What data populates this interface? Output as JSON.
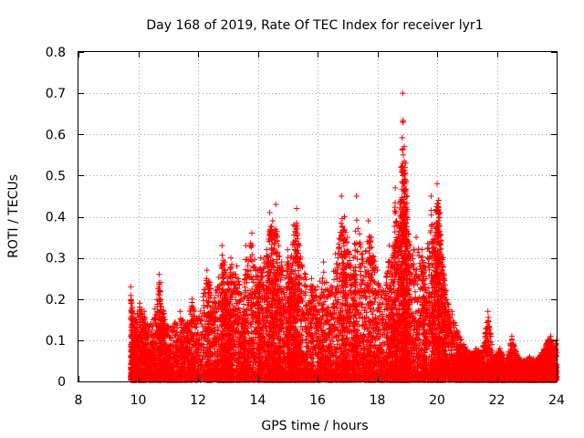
{
  "chart_data": {
    "type": "scatter",
    "title": "Day 168 of 2019, Rate Of TEC Index for receiver lyr1",
    "xlabel": "GPS time / hours",
    "ylabel": "ROTI / TECUs",
    "xlim": [
      8,
      24
    ],
    "ylim": [
      0,
      0.8
    ],
    "xticks": [
      "8",
      "10",
      "12",
      "14",
      "16",
      "18",
      "20",
      "22",
      "24"
    ],
    "yticks": [
      "0",
      "0.1",
      "0.2",
      "0.3",
      "0.4",
      "0.5",
      "0.6",
      "0.7",
      "0.8"
    ],
    "grid": true,
    "marker": "+",
    "color": "#ff0000",
    "series": [
      {
        "name": "ROTI",
        "points": [
          [
            9.75,
            0.23
          ],
          [
            9.8,
            0.18
          ],
          [
            9.9,
            0.15
          ],
          [
            10.05,
            0.19
          ],
          [
            10.2,
            0.17
          ],
          [
            10.3,
            0.14
          ],
          [
            10.5,
            0.15
          ],
          [
            10.7,
            0.26
          ],
          [
            10.75,
            0.24
          ],
          [
            10.9,
            0.15
          ],
          [
            11.1,
            0.13
          ],
          [
            11.4,
            0.17
          ],
          [
            11.6,
            0.14
          ],
          [
            11.8,
            0.2
          ],
          [
            12.0,
            0.15
          ],
          [
            12.3,
            0.27
          ],
          [
            12.4,
            0.24
          ],
          [
            12.6,
            0.22
          ],
          [
            12.8,
            0.33
          ],
          [
            12.9,
            0.29
          ],
          [
            13.0,
            0.25
          ],
          [
            13.1,
            0.3
          ],
          [
            13.3,
            0.28
          ],
          [
            13.5,
            0.2
          ],
          [
            13.6,
            0.33
          ],
          [
            13.8,
            0.36
          ],
          [
            14.0,
            0.27
          ],
          [
            14.1,
            0.3
          ],
          [
            14.3,
            0.32
          ],
          [
            14.4,
            0.41
          ],
          [
            14.5,
            0.39
          ],
          [
            14.6,
            0.43
          ],
          [
            14.7,
            0.33
          ],
          [
            14.8,
            0.29
          ],
          [
            15.0,
            0.32
          ],
          [
            15.1,
            0.3
          ],
          [
            15.2,
            0.38
          ],
          [
            15.3,
            0.42
          ],
          [
            15.4,
            0.33
          ],
          [
            15.6,
            0.26
          ],
          [
            15.8,
            0.25
          ],
          [
            16.0,
            0.23
          ],
          [
            16.2,
            0.29
          ],
          [
            16.4,
            0.22
          ],
          [
            16.6,
            0.31
          ],
          [
            16.8,
            0.45
          ],
          [
            16.9,
            0.4
          ],
          [
            17.0,
            0.35
          ],
          [
            17.2,
            0.3
          ],
          [
            17.3,
            0.45
          ],
          [
            17.5,
            0.31
          ],
          [
            17.7,
            0.39
          ],
          [
            17.8,
            0.35
          ],
          [
            18.0,
            0.27
          ],
          [
            18.2,
            0.22
          ],
          [
            18.4,
            0.33
          ],
          [
            18.5,
            0.3
          ],
          [
            18.6,
            0.47
          ],
          [
            18.7,
            0.38
          ],
          [
            18.8,
            0.52
          ],
          [
            18.85,
            0.7
          ],
          [
            18.9,
            0.57
          ],
          [
            18.95,
            0.53
          ],
          [
            19.0,
            0.45
          ],
          [
            19.1,
            0.33
          ],
          [
            19.3,
            0.35
          ],
          [
            19.5,
            0.32
          ],
          [
            19.6,
            0.28
          ],
          [
            19.8,
            0.45
          ],
          [
            19.9,
            0.34
          ],
          [
            20.0,
            0.48
          ],
          [
            20.05,
            0.44
          ],
          [
            20.1,
            0.41
          ],
          [
            20.2,
            0.3
          ],
          [
            20.3,
            0.22
          ],
          [
            20.5,
            0.17
          ],
          [
            20.7,
            0.12
          ],
          [
            20.9,
            0.09
          ],
          [
            21.1,
            0.07
          ],
          [
            21.3,
            0.08
          ],
          [
            21.5,
            0.07
          ],
          [
            21.7,
            0.17
          ],
          [
            21.9,
            0.06
          ],
          [
            22.1,
            0.08
          ],
          [
            22.3,
            0.05
          ],
          [
            22.5,
            0.11
          ],
          [
            22.7,
            0.06
          ],
          [
            22.9,
            0.05
          ],
          [
            23.1,
            0.06
          ],
          [
            23.3,
            0.05
          ],
          [
            23.5,
            0.07
          ],
          [
            23.7,
            0.1
          ],
          [
            23.8,
            0.11
          ],
          [
            23.9,
            0.08
          ],
          [
            24.0,
            0.1
          ]
        ]
      }
    ]
  }
}
